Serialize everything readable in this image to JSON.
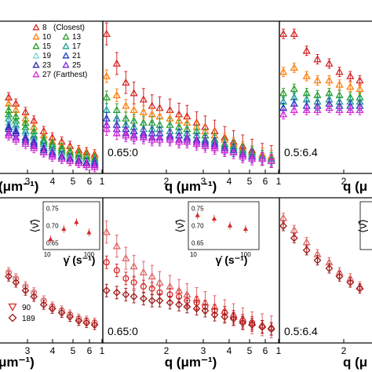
{
  "figure_title": "",
  "chart_data": [
    {
      "type": "scatter",
      "panel": "top-left",
      "annotation": "",
      "xlabel": "(μm⁻¹)",
      "xtick_labels": [
        "3",
        "4",
        "5",
        "6",
        "1"
      ],
      "xscale": "log",
      "legend": {
        "placement": "top-right",
        "entries": [
          {
            "label": "8",
            "note": "(Closest)",
            "color": "#d62728"
          },
          {
            "label": "10",
            "note": "",
            "color": "#ff7f0e"
          },
          {
            "label": "13",
            "note": "",
            "color": "#2ca02c"
          },
          {
            "label": "15",
            "note": "",
            "color": "#1f9e1f"
          },
          {
            "label": "17",
            "note": "",
            "color": "#1f9e8f"
          },
          {
            "label": "19",
            "note": "",
            "color": "#7fd4d4"
          },
          {
            "label": "21",
            "note": "",
            "color": "#1f3fbf"
          },
          {
            "label": "23",
            "note": "",
            "color": "#2b2bb0"
          },
          {
            "label": "25",
            "note": "",
            "color": "#7b2bd6"
          },
          {
            "label": "27",
            "note": "(Farthest)",
            "color": "#d62bd6"
          }
        ]
      },
      "x": [
        1.8,
        2.0,
        2.3,
        2.6,
        3.0,
        3.4,
        3.9,
        4.4,
        5.0,
        5.6,
        6.3
      ],
      "series": [
        {
          "name": "8",
          "color": "#d62728",
          "values": [
            0.56,
            0.53,
            0.49,
            0.45,
            0.4,
            0.37,
            0.35,
            0.33,
            0.31,
            0.3,
            0.29
          ]
        },
        {
          "name": "10",
          "color": "#ff7f0e",
          "values": [
            0.53,
            0.5,
            0.46,
            0.42,
            0.38,
            0.35,
            0.33,
            0.31,
            0.3,
            0.29,
            0.28
          ]
        },
        {
          "name": "13",
          "color": "#2ca02c",
          "values": [
            0.5,
            0.47,
            0.44,
            0.4,
            0.36,
            0.34,
            0.32,
            0.3,
            0.29,
            0.28,
            0.27
          ]
        },
        {
          "name": "15",
          "color": "#1f9e1f",
          "values": [
            0.48,
            0.45,
            0.42,
            0.38,
            0.35,
            0.33,
            0.31,
            0.29,
            0.28,
            0.27,
            0.26
          ]
        },
        {
          "name": "17",
          "color": "#1f9e8f",
          "values": [
            0.46,
            0.43,
            0.4,
            0.37,
            0.34,
            0.32,
            0.3,
            0.28,
            0.27,
            0.26,
            0.26
          ]
        },
        {
          "name": "19",
          "color": "#7fd4d4",
          "values": [
            0.44,
            0.42,
            0.39,
            0.36,
            0.33,
            0.31,
            0.29,
            0.28,
            0.27,
            0.26,
            0.25
          ]
        },
        {
          "name": "21",
          "color": "#1f3fbf",
          "values": [
            0.42,
            0.4,
            0.37,
            0.35,
            0.32,
            0.3,
            0.28,
            0.27,
            0.26,
            0.25,
            0.25
          ]
        },
        {
          "name": "23",
          "color": "#2b2bb0",
          "values": [
            0.41,
            0.39,
            0.36,
            0.34,
            0.31,
            0.29,
            0.28,
            0.27,
            0.26,
            0.25,
            0.24
          ]
        },
        {
          "name": "25",
          "color": "#7b2bd6",
          "values": [
            0.39,
            0.37,
            0.35,
            0.33,
            0.3,
            0.29,
            0.27,
            0.26,
            0.25,
            0.24,
            0.24
          ]
        },
        {
          "name": "27",
          "color": "#d62bd6",
          "values": [
            0.38,
            0.36,
            0.34,
            0.32,
            0.3,
            0.28,
            0.27,
            0.26,
            0.25,
            0.24,
            0.23
          ]
        }
      ]
    },
    {
      "type": "scatter",
      "panel": "top-middle",
      "annotation": "0.65:0",
      "xlabel": "q (μm⁻¹)",
      "xtick_labels": [
        "2",
        "3",
        "4",
        "5",
        "6",
        "1"
      ],
      "xscale": "log",
      "x": [
        1.05,
        1.2,
        1.35,
        1.5,
        1.7,
        1.9,
        2.1,
        2.4,
        2.7,
        3.0,
        3.4,
        3.8,
        4.3,
        4.9,
        5.5,
        6.2,
        7.0,
        8.0,
        9.0
      ],
      "series": [
        {
          "name": "8",
          "color": "#d62728",
          "values": [
            0.86,
            0.72,
            0.63,
            0.58,
            0.55,
            0.52,
            0.51,
            0.5,
            0.48,
            0.47,
            0.44,
            0.42,
            0.4,
            0.37,
            0.35,
            0.33,
            0.31,
            0.29,
            0.28
          ]
        },
        {
          "name": "10",
          "color": "#ff7f0e",
          "values": [
            0.66,
            0.57,
            0.52,
            0.5,
            0.49,
            0.48,
            0.47,
            0.46,
            0.45,
            0.44,
            0.42,
            0.4,
            0.38,
            0.36,
            0.34,
            0.32,
            0.3,
            0.29,
            0.28
          ]
        },
        {
          "name": "13",
          "color": "#2ca02c",
          "values": [
            0.56,
            0.5,
            0.46,
            0.45,
            0.44,
            0.44,
            0.43,
            0.43,
            0.42,
            0.41,
            0.4,
            0.38,
            0.36,
            0.34,
            0.33,
            0.31,
            0.3,
            0.28,
            0.27
          ]
        },
        {
          "name": "17",
          "color": "#1f9e8f",
          "values": [
            0.5,
            0.46,
            0.43,
            0.42,
            0.41,
            0.41,
            0.41,
            0.4,
            0.4,
            0.39,
            0.38,
            0.36,
            0.35,
            0.33,
            0.32,
            0.3,
            0.29,
            0.28,
            0.27
          ]
        },
        {
          "name": "21",
          "color": "#1f3fbf",
          "values": [
            0.46,
            0.43,
            0.41,
            0.4,
            0.39,
            0.39,
            0.39,
            0.38,
            0.38,
            0.37,
            0.36,
            0.35,
            0.34,
            0.32,
            0.31,
            0.29,
            0.28,
            0.27,
            0.26
          ]
        },
        {
          "name": "25",
          "color": "#7b2bd6",
          "values": [
            0.43,
            0.41,
            0.39,
            0.38,
            0.38,
            0.37,
            0.37,
            0.37,
            0.36,
            0.36,
            0.35,
            0.34,
            0.33,
            0.31,
            0.3,
            0.29,
            0.28,
            0.27,
            0.26
          ]
        },
        {
          "name": "27",
          "color": "#d62bd6",
          "values": [
            0.41,
            0.39,
            0.38,
            0.37,
            0.37,
            0.36,
            0.36,
            0.36,
            0.35,
            0.35,
            0.34,
            0.33,
            0.32,
            0.31,
            0.3,
            0.28,
            0.27,
            0.27,
            0.26
          ]
        }
      ]
    },
    {
      "type": "scatter",
      "panel": "top-right",
      "annotation": "0.5:6.4",
      "xlabel": "q (μ",
      "xtick_labels": [
        "2"
      ],
      "xscale": "log",
      "x": [
        1.05,
        1.2,
        1.4,
        1.6,
        1.85,
        2.1,
        2.4,
        2.7
      ],
      "series": [
        {
          "name": "8",
          "color": "#d62728",
          "values": [
            0.86,
            0.86,
            0.78,
            0.74,
            0.72,
            0.68,
            0.66,
            0.64
          ]
        },
        {
          "name": "10",
          "color": "#ff7f0e",
          "values": [
            0.68,
            0.7,
            0.66,
            0.64,
            0.64,
            0.62,
            0.61,
            0.6
          ]
        },
        {
          "name": "13",
          "color": "#2ca02c",
          "values": [
            0.58,
            0.6,
            0.58,
            0.57,
            0.58,
            0.57,
            0.56,
            0.56
          ]
        },
        {
          "name": "17",
          "color": "#1f9e8f",
          "values": [
            0.54,
            0.56,
            0.55,
            0.54,
            0.55,
            0.54,
            0.54,
            0.54
          ]
        },
        {
          "name": "21",
          "color": "#1f3fbf",
          "values": [
            0.51,
            0.53,
            0.52,
            0.52,
            0.53,
            0.52,
            0.52,
            0.52
          ]
        },
        {
          "name": "27",
          "color": "#d62bd6",
          "values": [
            0.48,
            0.5,
            0.5,
            0.5,
            0.51,
            0.5,
            0.5,
            0.5
          ]
        }
      ]
    },
    {
      "type": "scatter",
      "panel": "bottom-left",
      "annotation": "",
      "xlabel": "μm⁻¹)",
      "xtick_labels": [
        "3",
        "4",
        "5",
        "6",
        "1"
      ],
      "xscale": "log",
      "legend": {
        "placement": "bottom-left",
        "entries": [
          {
            "label": "90",
            "marker": "triangle-down",
            "color": "#d62728"
          },
          {
            "label": "189",
            "marker": "diamond",
            "color": "#a01818"
          }
        ]
      },
      "x": [
        1.8,
        2.0,
        2.3,
        2.6,
        3.0,
        3.4,
        3.9,
        4.4,
        5.0,
        5.6,
        6.3
      ],
      "series": [
        {
          "name": "90",
          "color": "#e06666",
          "values": [
            0.55,
            0.52,
            0.48,
            0.45,
            0.41,
            0.38,
            0.36,
            0.34,
            0.32,
            0.31,
            0.3
          ]
        },
        {
          "name": "189",
          "color": "#a01818",
          "values": [
            0.53,
            0.5,
            0.46,
            0.43,
            0.39,
            0.37,
            0.35,
            0.33,
            0.31,
            0.3,
            0.29
          ]
        }
      ],
      "inset": {
        "ylabel": "⟨ν̂⟩",
        "xlabel": "γ̇ (s⁻¹)",
        "xtick_labels": [
          "10",
          "100"
        ],
        "ytick_labels": [
          "0.75",
          "0.70",
          "0.65"
        ],
        "ylim": [
          0.63,
          0.77
        ],
        "xscale": "log",
        "x": [
          12,
          25,
          50,
          100
        ],
        "values": [
          0.66,
          0.69,
          0.71,
          0.68
        ]
      }
    },
    {
      "type": "scatter",
      "panel": "bottom-middle",
      "annotation": "0.65:0",
      "xlabel": "q (μm⁻¹)",
      "xtick_labels": [
        "2",
        "3",
        "4",
        "5",
        "6",
        "1"
      ],
      "xscale": "log",
      "x": [
        1.05,
        1.2,
        1.35,
        1.5,
        1.7,
        1.9,
        2.1,
        2.4,
        2.7,
        3.0,
        3.4,
        3.8,
        4.3,
        4.9,
        5.5,
        6.2,
        7.0,
        8.0,
        9.0
      ],
      "series": [
        {
          "name": "tri",
          "color": "#e06666",
          "values": [
            0.75,
            0.68,
            0.62,
            0.58,
            0.55,
            0.53,
            0.5,
            0.48,
            0.46,
            0.44,
            0.42,
            0.4,
            0.38,
            0.36,
            0.34,
            0.32,
            0.3,
            0.29,
            0.28
          ]
        },
        {
          "name": "circ",
          "color": "#d62728",
          "values": [
            0.6,
            0.56,
            0.52,
            0.5,
            0.48,
            0.47,
            0.45,
            0.44,
            0.43,
            0.41,
            0.4,
            0.38,
            0.36,
            0.35,
            0.33,
            0.31,
            0.3,
            0.28,
            0.27
          ]
        },
        {
          "name": "dia",
          "color": "#a01818",
          "values": [
            0.46,
            0.45,
            0.44,
            0.43,
            0.42,
            0.41,
            0.41,
            0.4,
            0.39,
            0.38,
            0.37,
            0.36,
            0.34,
            0.33,
            0.32,
            0.3,
            0.29,
            0.28,
            0.27
          ]
        }
      ],
      "inset": {
        "ylabel": "⟨ν̂⟩",
        "xlabel": "γ̇ (s⁻¹)",
        "xtick_labels": [
          "10",
          "100"
        ],
        "ytick_labels": [
          "0.75",
          "0.70",
          "0.65"
        ],
        "ylim": [
          0.63,
          0.77
        ],
        "xscale": "log",
        "x": [
          12,
          25,
          50,
          100
        ],
        "values": [
          0.73,
          0.72,
          0.7,
          0.69
        ]
      }
    },
    {
      "type": "scatter",
      "panel": "bottom-right",
      "annotation": "0.5:6.4",
      "xlabel": "q (μ",
      "xtick_labels": [
        "2"
      ],
      "xscale": "log",
      "x": [
        1.05,
        1.2,
        1.4,
        1.6,
        1.85,
        2.1,
        2.4,
        2.7
      ],
      "series": [
        {
          "name": "tri",
          "color": "#e06666",
          "values": [
            0.82,
            0.76,
            0.7,
            0.64,
            0.6,
            0.55,
            0.52,
            0.48
          ]
        },
        {
          "name": "dia",
          "color": "#a01818",
          "values": [
            0.78,
            0.72,
            0.66,
            0.61,
            0.57,
            0.53,
            0.5,
            0.47
          ]
        }
      ],
      "inset": {
        "ylabel": "⟨ν̂⟩"
      }
    }
  ]
}
